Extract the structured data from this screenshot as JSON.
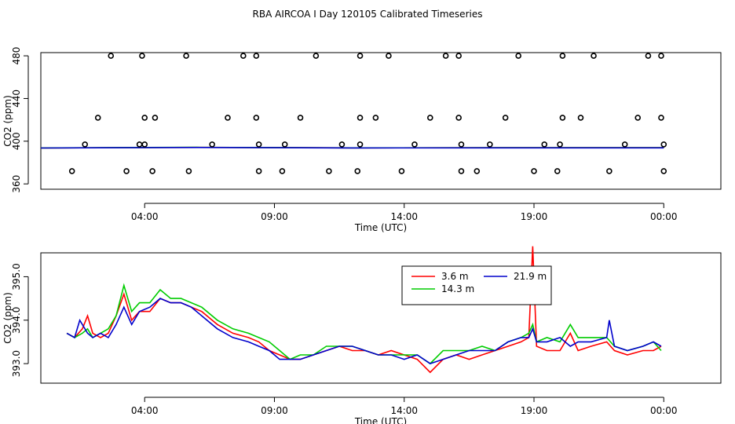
{
  "title": "RBA AIRCOA I  Day 120105  Calibrated Timeseries",
  "colors": {
    "s1": "#ff0000",
    "s2": "#00cc00",
    "s3": "#0000cc",
    "axis": "#000000"
  },
  "chart_data": [
    {
      "type": "scatter+line",
      "xlabel": "Time (UTC)",
      "ylabel": "CO2 (ppm)",
      "xlim": [
        0,
        26.2
      ],
      "ylim": [
        355,
        483
      ],
      "xticks": [
        {
          "v": 4,
          "label": "04:00"
        },
        {
          "v": 9,
          "label": "09:00"
        },
        {
          "v": 14,
          "label": "14:00"
        },
        {
          "v": 19,
          "label": "19:00"
        },
        {
          "v": 24,
          "label": "00:00"
        }
      ],
      "yticks": [
        {
          "v": 360,
          "label": "360"
        },
        {
          "v": 400,
          "label": "400"
        },
        {
          "v": 440,
          "label": "440"
        },
        {
          "v": 480,
          "label": "480"
        }
      ],
      "ref_points": [
        [
          1.2,
          372
        ],
        [
          1.7,
          397
        ],
        [
          2.2,
          422
        ],
        [
          2.7,
          480
        ],
        [
          3.3,
          372
        ],
        [
          3.8,
          397
        ],
        [
          4.4,
          422
        ],
        [
          3.9,
          480
        ],
        [
          4.3,
          372
        ],
        [
          4.0,
          397
        ],
        [
          4.0,
          422
        ],
        [
          5.6,
          480
        ],
        [
          5.7,
          372
        ],
        [
          6.6,
          397
        ],
        [
          7.2,
          422
        ],
        [
          7.8,
          480
        ],
        [
          8.3,
          480
        ],
        [
          8.3,
          422
        ],
        [
          8.4,
          397
        ],
        [
          8.4,
          372
        ],
        [
          9.3,
          372
        ],
        [
          9.4,
          397
        ],
        [
          10.0,
          422
        ],
        [
          10.6,
          480
        ],
        [
          11.1,
          372
        ],
        [
          11.6,
          397
        ],
        [
          12.2,
          372
        ],
        [
          12.3,
          397
        ],
        [
          12.3,
          422
        ],
        [
          12.3,
          480
        ],
        [
          12.9,
          422
        ],
        [
          13.9,
          372
        ],
        [
          13.4,
          480
        ],
        [
          14.4,
          397
        ],
        [
          15.0,
          422
        ],
        [
          15.6,
          480
        ],
        [
          16.1,
          480
        ],
        [
          16.1,
          422
        ],
        [
          16.2,
          397
        ],
        [
          16.2,
          372
        ],
        [
          16.8,
          372
        ],
        [
          17.3,
          397
        ],
        [
          17.9,
          422
        ],
        [
          18.4,
          480
        ],
        [
          19.0,
          372
        ],
        [
          19.4,
          397
        ],
        [
          19.9,
          372
        ],
        [
          20.0,
          397
        ],
        [
          20.1,
          422
        ],
        [
          20.1,
          480
        ],
        [
          20.8,
          422
        ],
        [
          21.3,
          480
        ],
        [
          21.9,
          372
        ],
        [
          22.5,
          397
        ],
        [
          23.0,
          422
        ],
        [
          23.4,
          480
        ],
        [
          23.9,
          480
        ],
        [
          23.9,
          422
        ],
        [
          24.0,
          397
        ],
        [
          24.0,
          372
        ]
      ],
      "series": [
        {
          "name": "3.6 m",
          "values": [
            [
              0,
              393.7
            ],
            [
              6,
              394.2
            ],
            [
              12,
              393.8
            ],
            [
              18,
              393.9
            ],
            [
              24,
              393.9
            ]
          ]
        },
        {
          "name": "14.3 m",
          "values": [
            [
              0,
              393.7
            ],
            [
              6,
              394.3
            ],
            [
              12,
              393.8
            ],
            [
              18,
              393.9
            ],
            [
              24,
              393.9
            ]
          ]
        },
        {
          "name": "21.9 m",
          "values": [
            [
              0,
              393.6
            ],
            [
              6,
              394.1
            ],
            [
              12,
              393.7
            ],
            [
              18,
              393.8
            ],
            [
              24,
              393.8
            ]
          ]
        }
      ]
    },
    {
      "type": "line",
      "xlabel": "Time (UTC)",
      "ylabel": "CO2 (ppm)",
      "xlim": [
        0,
        26.2
      ],
      "ylim": [
        392.55,
        395.55
      ],
      "xticks": [
        {
          "v": 4,
          "label": "04:00"
        },
        {
          "v": 9,
          "label": "09:00"
        },
        {
          "v": 14,
          "label": "14:00"
        },
        {
          "v": 19,
          "label": "19:00"
        },
        {
          "v": 24,
          "label": "00:00"
        }
      ],
      "yticks": [
        {
          "v": 393.0,
          "label": "393.0"
        },
        {
          "v": 394.0,
          "label": "394.0"
        },
        {
          "v": 395.0,
          "label": "395.0"
        }
      ],
      "legend": {
        "position": "top-right",
        "entries": [
          "3.6 m",
          "14.3 m",
          "21.9 m"
        ]
      },
      "series": [
        {
          "name": "3.6 m",
          "values": [
            [
              1.0,
              393.7
            ],
            [
              1.3,
              393.6
            ],
            [
              1.6,
              393.8
            ],
            [
              1.8,
              394.1
            ],
            [
              2.0,
              393.7
            ],
            [
              2.3,
              393.6
            ],
            [
              2.6,
              393.7
            ],
            [
              2.9,
              394.1
            ],
            [
              3.2,
              394.6
            ],
            [
              3.5,
              394.0
            ],
            [
              3.8,
              394.2
            ],
            [
              4.2,
              394.2
            ],
            [
              4.6,
              394.5
            ],
            [
              5.0,
              394.4
            ],
            [
              5.4,
              394.4
            ],
            [
              5.8,
              394.3
            ],
            [
              6.2,
              394.2
            ],
            [
              6.8,
              393.9
            ],
            [
              7.4,
              393.7
            ],
            [
              8.0,
              393.6
            ],
            [
              8.4,
              393.5
            ],
            [
              8.8,
              393.3
            ],
            [
              9.2,
              393.2
            ],
            [
              9.6,
              393.1
            ],
            [
              10.0,
              393.1
            ],
            [
              10.5,
              393.2
            ],
            [
              11.0,
              393.3
            ],
            [
              11.5,
              393.4
            ],
            [
              12.0,
              393.3
            ],
            [
              12.5,
              393.3
            ],
            [
              13.0,
              393.2
            ],
            [
              13.5,
              393.3
            ],
            [
              14.0,
              393.2
            ],
            [
              14.5,
              393.1
            ],
            [
              15.0,
              392.8
            ],
            [
              15.5,
              393.1
            ],
            [
              16.0,
              393.2
            ],
            [
              16.5,
              393.1
            ],
            [
              17.0,
              393.2
            ],
            [
              17.5,
              393.3
            ],
            [
              18.0,
              393.4
            ],
            [
              18.5,
              393.5
            ],
            [
              18.8,
              393.6
            ],
            [
              18.95,
              395.7
            ],
            [
              19.1,
              393.4
            ],
            [
              19.5,
              393.3
            ],
            [
              20.0,
              393.3
            ],
            [
              20.4,
              393.7
            ],
            [
              20.7,
              393.3
            ],
            [
              21.2,
              393.4
            ],
            [
              21.8,
              393.5
            ],
            [
              22.1,
              393.3
            ],
            [
              22.6,
              393.2
            ],
            [
              23.2,
              393.3
            ],
            [
              23.6,
              393.3
            ],
            [
              23.9,
              393.4
            ]
          ]
        },
        {
          "name": "14.3 m",
          "values": [
            [
              1.0,
              393.7
            ],
            [
              1.3,
              393.6
            ],
            [
              1.6,
              393.7
            ],
            [
              1.8,
              393.8
            ],
            [
              2.0,
              393.6
            ],
            [
              2.3,
              393.7
            ],
            [
              2.6,
              393.8
            ],
            [
              2.9,
              394.1
            ],
            [
              3.2,
              394.8
            ],
            [
              3.5,
              394.2
            ],
            [
              3.8,
              394.4
            ],
            [
              4.2,
              394.4
            ],
            [
              4.6,
              394.7
            ],
            [
              5.0,
              394.5
            ],
            [
              5.4,
              394.5
            ],
            [
              5.8,
              394.4
            ],
            [
              6.2,
              394.3
            ],
            [
              6.8,
              394.0
            ],
            [
              7.4,
              393.8
            ],
            [
              8.0,
              393.7
            ],
            [
              8.4,
              393.6
            ],
            [
              8.8,
              393.5
            ],
            [
              9.2,
              393.3
            ],
            [
              9.6,
              393.1
            ],
            [
              10.0,
              393.2
            ],
            [
              10.5,
              393.2
            ],
            [
              11.0,
              393.4
            ],
            [
              11.5,
              393.4
            ],
            [
              12.0,
              393.4
            ],
            [
              12.5,
              393.3
            ],
            [
              13.0,
              393.2
            ],
            [
              13.5,
              393.2
            ],
            [
              14.0,
              393.2
            ],
            [
              14.5,
              393.2
            ],
            [
              15.0,
              393.0
            ],
            [
              15.5,
              393.3
            ],
            [
              16.0,
              393.3
            ],
            [
              16.5,
              393.3
            ],
            [
              17.0,
              393.4
            ],
            [
              17.5,
              393.3
            ],
            [
              18.0,
              393.5
            ],
            [
              18.5,
              393.6
            ],
            [
              18.8,
              393.7
            ],
            [
              18.95,
              393.9
            ],
            [
              19.1,
              393.5
            ],
            [
              19.5,
              393.6
            ],
            [
              20.0,
              393.5
            ],
            [
              20.4,
              393.9
            ],
            [
              20.7,
              393.6
            ],
            [
              21.2,
              393.6
            ],
            [
              21.8,
              393.6
            ],
            [
              22.1,
              393.4
            ],
            [
              22.6,
              393.3
            ],
            [
              23.2,
              393.4
            ],
            [
              23.6,
              393.5
            ],
            [
              23.9,
              393.3
            ]
          ]
        },
        {
          "name": "21.9 m",
          "values": [
            [
              1.0,
              393.7
            ],
            [
              1.3,
              393.6
            ],
            [
              1.5,
              394.0
            ],
            [
              1.8,
              393.7
            ],
            [
              2.0,
              393.6
            ],
            [
              2.3,
              393.7
            ],
            [
              2.6,
              393.6
            ],
            [
              2.9,
              393.9
            ],
            [
              3.2,
              394.3
            ],
            [
              3.5,
              393.9
            ],
            [
              3.8,
              394.2
            ],
            [
              4.2,
              394.3
            ],
            [
              4.6,
              394.5
            ],
            [
              5.0,
              394.4
            ],
            [
              5.4,
              394.4
            ],
            [
              5.8,
              394.3
            ],
            [
              6.2,
              394.1
            ],
            [
              6.8,
              393.8
            ],
            [
              7.4,
              393.6
            ],
            [
              8.0,
              393.5
            ],
            [
              8.4,
              393.4
            ],
            [
              8.8,
              393.3
            ],
            [
              9.2,
              393.1
            ],
            [
              9.6,
              393.1
            ],
            [
              10.0,
              393.1
            ],
            [
              10.5,
              393.2
            ],
            [
              11.0,
              393.3
            ],
            [
              11.5,
              393.4
            ],
            [
              12.0,
              393.4
            ],
            [
              12.5,
              393.3
            ],
            [
              13.0,
              393.2
            ],
            [
              13.5,
              393.2
            ],
            [
              14.0,
              393.1
            ],
            [
              14.5,
              393.2
            ],
            [
              15.0,
              393.0
            ],
            [
              15.5,
              393.1
            ],
            [
              16.0,
              393.2
            ],
            [
              16.5,
              393.3
            ],
            [
              17.0,
              393.3
            ],
            [
              17.5,
              393.3
            ],
            [
              18.0,
              393.5
            ],
            [
              18.5,
              393.6
            ],
            [
              18.8,
              393.6
            ],
            [
              18.95,
              393.8
            ],
            [
              19.1,
              393.5
            ],
            [
              19.5,
              393.5
            ],
            [
              20.0,
              393.6
            ],
            [
              20.4,
              393.4
            ],
            [
              20.7,
              393.5
            ],
            [
              21.2,
              393.5
            ],
            [
              21.8,
              393.6
            ],
            [
              21.9,
              394.0
            ],
            [
              22.1,
              393.4
            ],
            [
              22.6,
              393.3
            ],
            [
              23.2,
              393.4
            ],
            [
              23.6,
              393.5
            ],
            [
              23.9,
              393.4
            ]
          ]
        }
      ]
    }
  ]
}
